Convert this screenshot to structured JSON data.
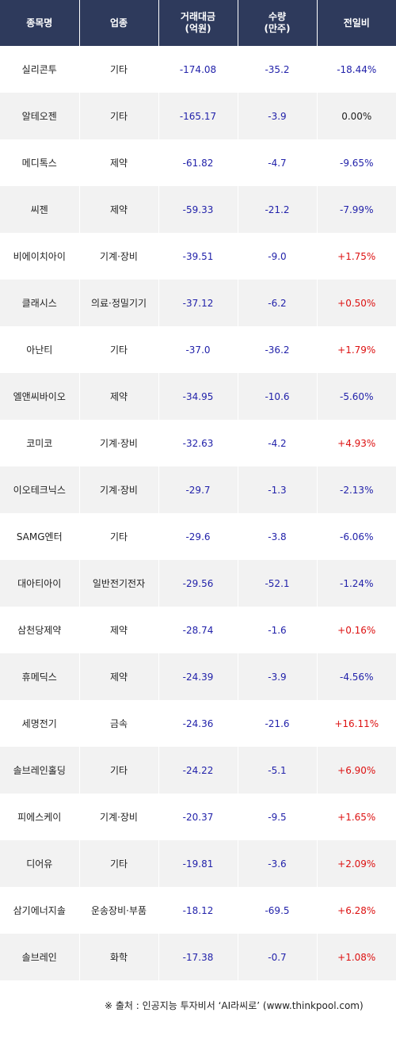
{
  "headers": {
    "name": "종목명",
    "sector": "업종",
    "amount": "거래대금\n(억원)",
    "volume": "수량\n(만주)",
    "change": "전일비"
  },
  "rows": [
    {
      "name": "실리콘투",
      "sector": "기타",
      "amount": "-174.08",
      "volume": "-35.2",
      "change": "-18.44%",
      "change_dir": "neg"
    },
    {
      "name": "알테오젠",
      "sector": "기타",
      "amount": "-165.17",
      "volume": "-3.9",
      "change": "0.00%",
      "change_dir": "flat"
    },
    {
      "name": "메디톡스",
      "sector": "제약",
      "amount": "-61.82",
      "volume": "-4.7",
      "change": "-9.65%",
      "change_dir": "neg"
    },
    {
      "name": "씨젠",
      "sector": "제약",
      "amount": "-59.33",
      "volume": "-21.2",
      "change": "-7.99%",
      "change_dir": "neg"
    },
    {
      "name": "비에이치아이",
      "sector": "기계·장비",
      "amount": "-39.51",
      "volume": "-9.0",
      "change": "+1.75%",
      "change_dir": "pos"
    },
    {
      "name": "클래시스",
      "sector": "의료·정밀기기",
      "amount": "-37.12",
      "volume": "-6.2",
      "change": "+0.50%",
      "change_dir": "pos"
    },
    {
      "name": "아난티",
      "sector": "기타",
      "amount": "-37.0",
      "volume": "-36.2",
      "change": "+1.79%",
      "change_dir": "pos"
    },
    {
      "name": "엘앤씨바이오",
      "sector": "제약",
      "amount": "-34.95",
      "volume": "-10.6",
      "change": "-5.60%",
      "change_dir": "neg"
    },
    {
      "name": "코미코",
      "sector": "기계·장비",
      "amount": "-32.63",
      "volume": "-4.2",
      "change": "+4.93%",
      "change_dir": "pos"
    },
    {
      "name": "이오테크닉스",
      "sector": "기계·장비",
      "amount": "-29.7",
      "volume": "-1.3",
      "change": "-2.13%",
      "change_dir": "neg"
    },
    {
      "name": "SAMG엔터",
      "sector": "기타",
      "amount": "-29.6",
      "volume": "-3.8",
      "change": "-6.06%",
      "change_dir": "neg"
    },
    {
      "name": "대아티아이",
      "sector": "일반전기전자",
      "amount": "-29.56",
      "volume": "-52.1",
      "change": "-1.24%",
      "change_dir": "neg"
    },
    {
      "name": "삼천당제약",
      "sector": "제약",
      "amount": "-28.74",
      "volume": "-1.6",
      "change": "+0.16%",
      "change_dir": "pos"
    },
    {
      "name": "휴메딕스",
      "sector": "제약",
      "amount": "-24.39",
      "volume": "-3.9",
      "change": "-4.56%",
      "change_dir": "neg"
    },
    {
      "name": "세명전기",
      "sector": "금속",
      "amount": "-24.36",
      "volume": "-21.6",
      "change": "+16.11%",
      "change_dir": "pos"
    },
    {
      "name": "솔브레인홀딩",
      "sector": "기타",
      "amount": "-24.22",
      "volume": "-5.1",
      "change": "+6.90%",
      "change_dir": "pos"
    },
    {
      "name": "피에스케이",
      "sector": "기계·장비",
      "amount": "-20.37",
      "volume": "-9.5",
      "change": "+1.65%",
      "change_dir": "pos"
    },
    {
      "name": "디어유",
      "sector": "기타",
      "amount": "-19.81",
      "volume": "-3.6",
      "change": "+2.09%",
      "change_dir": "pos"
    },
    {
      "name": "삼기에너지솔",
      "sector": "운송장비·부품",
      "amount": "-18.12",
      "volume": "-69.5",
      "change": "+6.28%",
      "change_dir": "pos"
    },
    {
      "name": "솔브레인",
      "sector": "화학",
      "amount": "-17.38",
      "volume": "-0.7",
      "change": "+1.08%",
      "change_dir": "pos"
    }
  ],
  "footer": "※ 출처 : 인공지능 투자비서 ‘AI라씨로’ (www.thinkpool.com)",
  "colors": {
    "header_bg": "#2e3a5c",
    "negative": "#2222aa",
    "positive": "#dd1111",
    "row_alt": "#f2f2f2"
  }
}
